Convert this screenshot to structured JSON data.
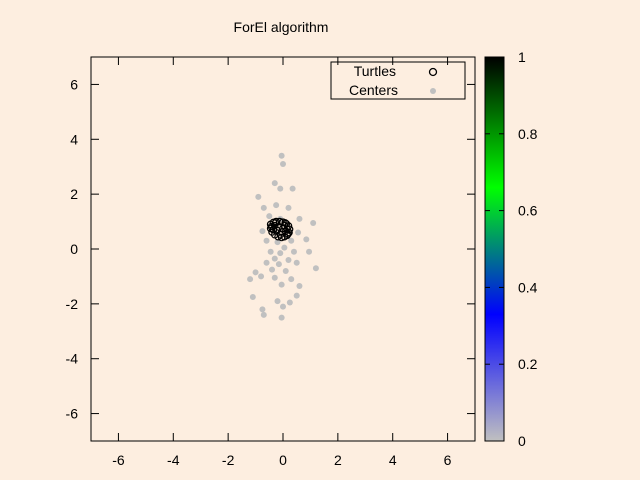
{
  "background": "#fdeee0",
  "chart_data": {
    "type": "scatter",
    "title": "ForEl algorithm",
    "xlabel": "",
    "ylabel": "",
    "xlim": [
      -7,
      7
    ],
    "ylim": [
      -7,
      7
    ],
    "xticks": [
      -6,
      -4,
      -2,
      0,
      2,
      4,
      6
    ],
    "yticks": [
      -6,
      -4,
      -2,
      0,
      2,
      4,
      6
    ],
    "xtick_labels": [
      "-6",
      "-4",
      "-2",
      "0",
      "2",
      "4",
      "6"
    ],
    "ytick_labels": [
      "-6",
      "-4",
      "-2",
      "0",
      "2",
      "4",
      "6"
    ],
    "grid": false,
    "legend_position": "top-right",
    "colorbar": {
      "range": [
        0,
        1
      ],
      "ticks": [
        0,
        0.2,
        0.4,
        0.6,
        0.8,
        1
      ],
      "tick_labels": [
        "0",
        "0.2",
        "0.4",
        "0.6",
        "0.8",
        "1"
      ],
      "colors": [
        "#c0c0c0",
        "#0000ff",
        "#00ff00",
        "#000000"
      ]
    },
    "series": [
      {
        "name": "Turtles",
        "marker": "open-circle",
        "color": "#000000",
        "points": [
          [
            -0.45,
            0.9
          ],
          [
            -0.35,
            0.97
          ],
          [
            -0.25,
            1.0
          ],
          [
            -0.12,
            1.0
          ],
          [
            0.0,
            0.98
          ],
          [
            0.12,
            0.92
          ],
          [
            0.2,
            0.84
          ],
          [
            0.24,
            0.72
          ],
          [
            0.22,
            0.6
          ],
          [
            0.15,
            0.5
          ],
          [
            0.05,
            0.45
          ],
          [
            -0.05,
            0.42
          ],
          [
            -0.18,
            0.45
          ],
          [
            -0.3,
            0.52
          ],
          [
            -0.4,
            0.62
          ],
          [
            -0.45,
            0.75
          ],
          [
            -0.3,
            0.85
          ],
          [
            -0.15,
            0.8
          ],
          [
            0.0,
            0.75
          ],
          [
            -0.22,
            0.68
          ],
          [
            -0.05,
            0.62
          ],
          [
            0.1,
            0.65
          ],
          [
            -0.35,
            0.7
          ],
          [
            0.05,
            0.85
          ],
          [
            -0.1,
            0.52
          ],
          [
            0.15,
            0.72
          ],
          [
            -0.28,
            0.95
          ],
          [
            -0.42,
            0.82
          ],
          [
            0.18,
            0.55
          ],
          [
            0.08,
            0.95
          ]
        ]
      },
      {
        "name": "Centers",
        "marker": "filled-circle",
        "color": "#c0c0c0",
        "points": [
          [
            -0.05,
            3.4
          ],
          [
            0.0,
            3.1
          ],
          [
            -0.3,
            2.4
          ],
          [
            -0.1,
            2.2
          ],
          [
            0.35,
            2.2
          ],
          [
            -0.9,
            1.9
          ],
          [
            -0.25,
            1.6
          ],
          [
            -0.7,
            1.5
          ],
          [
            0.2,
            1.5
          ],
          [
            -0.5,
            1.2
          ],
          [
            -0.1,
            1.1
          ],
          [
            0.6,
            1.1
          ],
          [
            1.1,
            0.95
          ],
          [
            -0.75,
            0.65
          ],
          [
            0.55,
            0.6
          ],
          [
            -0.6,
            0.3
          ],
          [
            -0.2,
            0.25
          ],
          [
            0.3,
            0.3
          ],
          [
            0.85,
            0.35
          ],
          [
            0.05,
            0.05
          ],
          [
            -0.45,
            -0.1
          ],
          [
            -0.1,
            -0.15
          ],
          [
            0.4,
            -0.1
          ],
          [
            0.95,
            -0.1
          ],
          [
            -0.3,
            -0.35
          ],
          [
            0.2,
            -0.4
          ],
          [
            -0.6,
            -0.5
          ],
          [
            -0.15,
            -0.55
          ],
          [
            0.5,
            -0.5
          ],
          [
            1.2,
            -0.7
          ],
          [
            -1.0,
            -0.85
          ],
          [
            -0.4,
            -0.75
          ],
          [
            0.1,
            -0.8
          ],
          [
            -1.2,
            -1.1
          ],
          [
            -0.8,
            -1.0
          ],
          [
            -0.3,
            -1.05
          ],
          [
            0.3,
            -1.1
          ],
          [
            -0.05,
            -1.3
          ],
          [
            0.6,
            -1.35
          ],
          [
            -1.1,
            -1.75
          ],
          [
            0.5,
            -1.7
          ],
          [
            -0.2,
            -1.9
          ],
          [
            0.25,
            -1.95
          ],
          [
            -0.75,
            -2.2
          ],
          [
            0.0,
            -2.1
          ],
          [
            -0.7,
            -2.4
          ],
          [
            -0.05,
            -2.5
          ]
        ]
      }
    ]
  }
}
